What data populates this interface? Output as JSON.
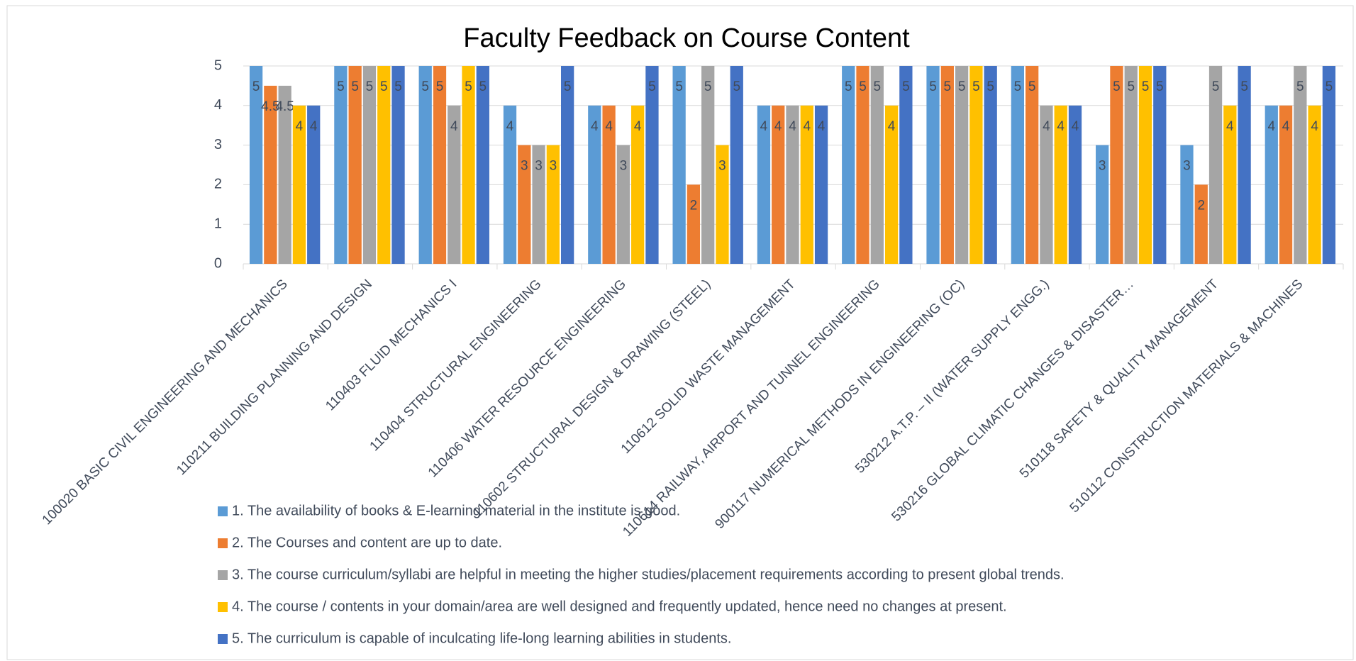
{
  "chart_data": {
    "type": "bar",
    "title": "Faculty Feedback on Course Content",
    "categories": [
      "100020 BASIC CIVIL ENGINEERING AND MECHANICS",
      "110211 BUILDING PLANNING AND DESIGN",
      "110403 FLUID MECHANICS I",
      "110404 STRUCTURAL ENGINEERING",
      "110406 WATER RESOURCE ENGINEERING",
      "110602 STRUCTURAL DESIGN & DRAWING (STEEL)",
      "110612 SOLID WASTE MANAGEMENT",
      "110614 RAILWAY, AIRPORT AND TUNNEL ENGINEERING",
      "900117 NUMERICAL METHODS IN ENGINEERING (OC)",
      "530212 A.T.P. – II (WATER SUPPLY ENGG.)",
      "530216 GLOBAL CLIMATIC CHANGES & DISASTER…",
      "510118 SAFETY & QUALITY MANAGEMENT",
      "510112 CONSTRUCTION MATERIALS & MACHINES"
    ],
    "series": [
      {
        "name": "1. The availability of books & E-learning material in the institute is good.",
        "color": "#5b9bd5",
        "values": [
          5,
          5,
          5,
          4,
          4,
          5,
          4,
          5,
          5,
          5,
          3,
          3,
          4
        ]
      },
      {
        "name": "2. The Courses and content are up to date.",
        "color": "#ed7d31",
        "values": [
          4.5,
          5,
          5,
          3,
          4,
          2,
          4,
          5,
          5,
          5,
          5,
          2,
          4
        ]
      },
      {
        "name": "3. The course curriculum/syllabi are helpful in meeting the higher studies/placement requirements according to present global trends.",
        "color": "#a5a5a5",
        "values": [
          4.5,
          5,
          4,
          3,
          3,
          5,
          4,
          5,
          5,
          4,
          5,
          5,
          5
        ]
      },
      {
        "name": "4. The course / contents in your domain/area are well designed and frequently updated, hence need no changes at present.",
        "color": "#ffc000",
        "values": [
          4,
          5,
          5,
          3,
          4,
          3,
          4,
          4,
          5,
          4,
          5,
          4,
          4
        ]
      },
      {
        "name": "5. The curriculum is capable of inculcating life-long learning abilities in students.",
        "color": "#4472c4",
        "values": [
          4,
          5,
          5,
          5,
          5,
          5,
          4,
          5,
          5,
          4,
          5,
          5,
          5
        ]
      }
    ],
    "ylim": [
      0,
      5
    ],
    "yticks": [
      0,
      1,
      2,
      3,
      4,
      5
    ],
    "grid": true
  }
}
